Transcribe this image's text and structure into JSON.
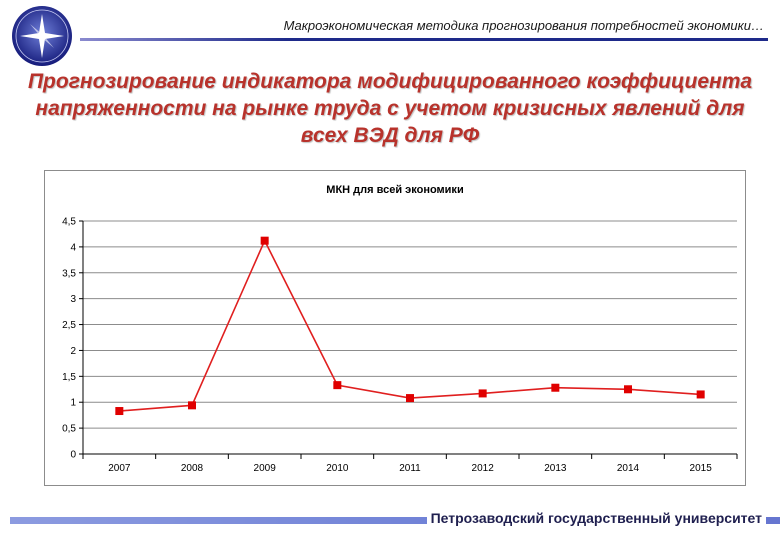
{
  "header": {
    "text": "Макроэкономическая методика прогнозирования потребностей экономики…"
  },
  "title": "Прогнозирование индикатора модифицированного коэффициента напряженности на рынке труда с учетом кризисных явлений для всех ВЭД для РФ",
  "footer": {
    "text": "Петрозаводский государственный университет"
  },
  "colors": {
    "series": "#e01f1f",
    "marker": "#e00000",
    "title": "#b8322b",
    "grid": "#8c8c8c"
  },
  "chart_data": {
    "type": "line",
    "title": "МКН для всей экономики",
    "xlabel": "",
    "ylabel": "",
    "categories": [
      "2007",
      "2008",
      "2009",
      "2010",
      "2011",
      "2012",
      "2013",
      "2014",
      "2015"
    ],
    "series": [
      {
        "values": [
          0.83,
          0.94,
          4.12,
          1.33,
          1.08,
          1.17,
          1.28,
          1.25,
          1.15
        ]
      }
    ],
    "ylim": [
      0,
      4.5
    ],
    "yticks": [
      "0",
      "0,5",
      "1",
      "1,5",
      "2",
      "2,5",
      "3",
      "3,5",
      "4",
      "4,5"
    ],
    "grid": "horizontal",
    "legend": "none"
  }
}
